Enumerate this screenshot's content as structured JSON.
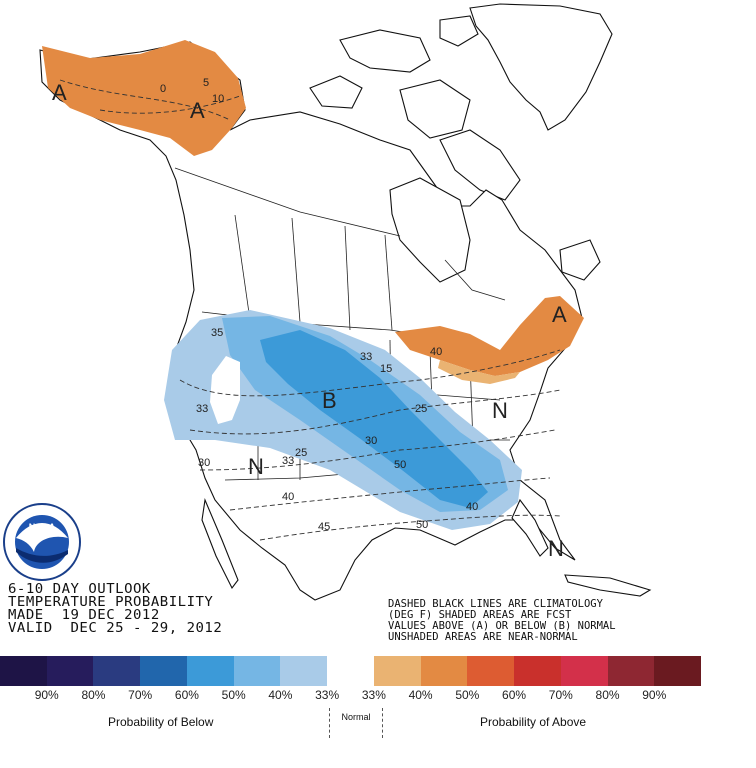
{
  "map": {
    "region_letters": [
      "A",
      "A",
      "B",
      "N",
      "N",
      "A",
      "N"
    ],
    "contour_labels": [
      "5",
      "10",
      "0",
      "35",
      "33",
      "33",
      "15",
      "25",
      "30",
      "50",
      "25",
      "33",
      "30",
      "40",
      "45",
      "50",
      "40",
      "40",
      "N"
    ],
    "logo_text": "NOAA",
    "logo_ring_text": "NATIONAL OCEANIC AND ATMOSPHERIC ADMINISTRATION · U.S. DEPARTMENT OF COMMERCE"
  },
  "title": {
    "line1": "6-10 DAY OUTLOOK",
    "line2": "TEMPERATURE PROBABILITY",
    "line3": "MADE  19 DEC 2012",
    "line4": "VALID  DEC 25 - 29, 2012"
  },
  "notes": {
    "line1": "DASHED BLACK LINES ARE CLIMATOLOGY",
    "line2": "(DEG F) SHADED AREAS ARE FCST",
    "line3": "VALUES ABOVE (A) OR BELOW (B) NORMAL",
    "line4": "UNSHADED AREAS ARE NEAR-NORMAL"
  },
  "legend": {
    "colors": [
      "#1e1446",
      "#261c5c",
      "#2a3b80",
      "#2166ac",
      "#3c9ad8",
      "#75b6e4",
      "#a9cbe8",
      "#ffffff",
      "#eab372",
      "#e38a43",
      "#dd5c32",
      "#c9302c",
      "#d3304a",
      "#8e2732",
      "#6a1a20"
    ],
    "ticks": [
      "90%",
      "80%",
      "70%",
      "60%",
      "50%",
      "40%",
      "33%",
      "33%",
      "40%",
      "50%",
      "60%",
      "70%",
      "80%",
      "90%"
    ],
    "below_label": "Probability of Below",
    "normal_label": "Normal",
    "above_label": "Probability of Above"
  }
}
